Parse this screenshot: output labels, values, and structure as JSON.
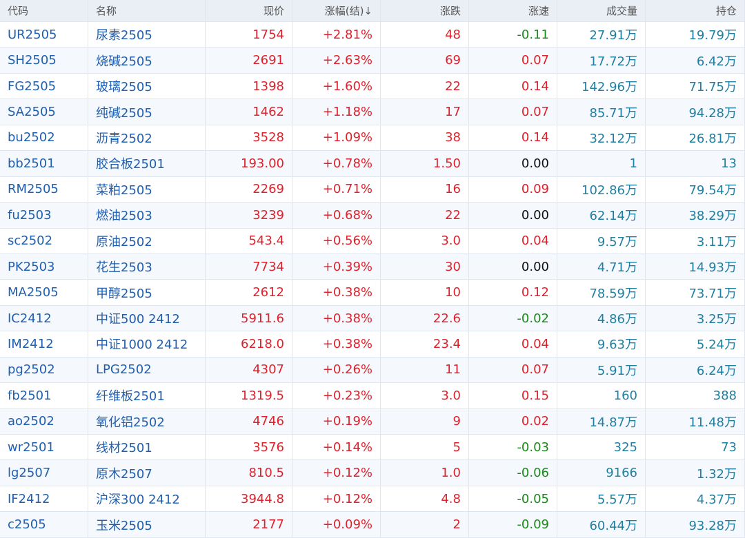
{
  "table": {
    "header": [
      "代码",
      "名称",
      "现价",
      "涨幅(结)↓",
      "涨跌",
      "涨速",
      "成交量",
      "持仓"
    ],
    "rows": [
      [
        "UR2505",
        "尿素2505",
        "1754",
        "+2.81%",
        "48",
        "-0.11",
        "27.91万",
        "19.79万"
      ],
      [
        "SH2505",
        "烧碱2505",
        "2691",
        "+2.63%",
        "69",
        "0.07",
        "17.72万",
        "6.42万"
      ],
      [
        "FG2505",
        "玻璃2505",
        "1398",
        "+1.60%",
        "22",
        "0.14",
        "142.96万",
        "71.75万"
      ],
      [
        "SA2505",
        "纯碱2505",
        "1462",
        "+1.18%",
        "17",
        "0.07",
        "85.71万",
        "94.28万"
      ],
      [
        "bu2502",
        "沥青2502",
        "3528",
        "+1.09%",
        "38",
        "0.14",
        "32.12万",
        "26.81万"
      ],
      [
        "bb2501",
        "胶合板2501",
        "193.00",
        "+0.78%",
        "1.50",
        "0.00",
        "1",
        "13"
      ],
      [
        "RM2505",
        "菜粕2505",
        "2269",
        "+0.71%",
        "16",
        "0.09",
        "102.86万",
        "79.54万"
      ],
      [
        "fu2503",
        "燃油2503",
        "3239",
        "+0.68%",
        "22",
        "0.00",
        "62.14万",
        "38.29万"
      ],
      [
        "sc2502",
        "原油2502",
        "543.4",
        "+0.56%",
        "3.0",
        "0.04",
        "9.57万",
        "3.11万"
      ],
      [
        "PK2503",
        "花生2503",
        "7734",
        "+0.39%",
        "30",
        "0.00",
        "4.71万",
        "14.93万"
      ],
      [
        "MA2505",
        "甲醇2505",
        "2612",
        "+0.38%",
        "10",
        "0.12",
        "78.59万",
        "73.71万"
      ],
      [
        "IC2412",
        "中证500 2412",
        "5911.6",
        "+0.38%",
        "22.6",
        "-0.02",
        "4.86万",
        "3.25万"
      ],
      [
        "IM2412",
        "中证1000 2412",
        "6218.0",
        "+0.38%",
        "23.4",
        "0.04",
        "9.63万",
        "5.24万"
      ],
      [
        "pg2502",
        "LPG2502",
        "4307",
        "+0.26%",
        "11",
        "0.07",
        "5.91万",
        "6.24万"
      ],
      [
        "fb2501",
        "纤维板2501",
        "1319.5",
        "+0.23%",
        "3.0",
        "0.15",
        "160",
        "388"
      ],
      [
        "ao2502",
        "氧化铝2502",
        "4746",
        "+0.19%",
        "9",
        "0.02",
        "14.87万",
        "11.48万"
      ],
      [
        "wr2501",
        "线材2501",
        "3576",
        "+0.14%",
        "5",
        "-0.03",
        "325",
        "73"
      ],
      [
        "lg2507",
        "原木2507",
        "810.5",
        "+0.12%",
        "1.0",
        "-0.06",
        "9166",
        "1.32万"
      ],
      [
        "IF2412",
        "沪深300 2412",
        "3944.8",
        "+0.12%",
        "4.8",
        "-0.05",
        "5.57万",
        "4.37万"
      ],
      [
        "c2505",
        "玉米2505",
        "2177",
        "+0.09%",
        "2",
        "-0.09",
        "60.44万",
        "93.28万"
      ]
    ]
  }
}
